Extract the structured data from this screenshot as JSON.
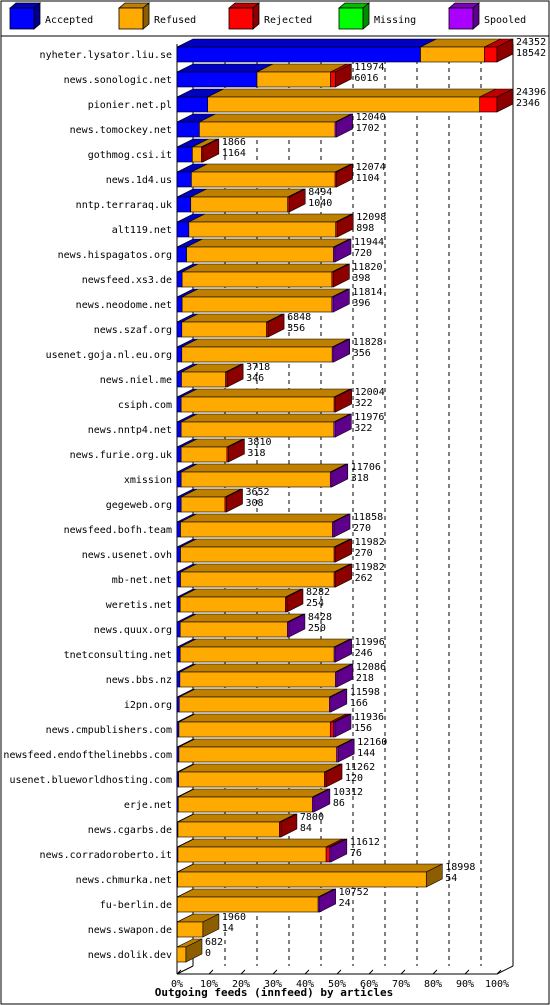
{
  "chart_data": {
    "type": "bar",
    "orientation": "horizontal",
    "stacked": true,
    "title": "",
    "xlabel": "Outgoing feeds (innfeed) by articles",
    "ylabel": "",
    "xlim": [
      0,
      100
    ],
    "x_ticks": [
      "0%",
      "10%",
      "20%",
      "30%",
      "40%",
      "50%",
      "60%",
      "70%",
      "80%",
      "90%",
      "100%"
    ],
    "grid": true,
    "legend_position": "top",
    "legend": [
      {
        "name": "Accepted",
        "color": "#0000ff"
      },
      {
        "name": "Refused",
        "color": "#ffaa00"
      },
      {
        "name": "Rejected",
        "color": "#ff0000"
      },
      {
        "name": "Missing",
        "color": "#00ff00"
      },
      {
        "name": "Spooled",
        "color": "#aa00ff"
      }
    ],
    "rows": [
      {
        "host": "nyheter.lysator.liu.se",
        "total": "24352",
        "accepted_count": "18542",
        "accepted": 76.1,
        "refused": 20.0,
        "rejected": 3.9,
        "spooled": 0
      },
      {
        "host": "news.sonologic.net",
        "total": "11974",
        "accepted_count": "6016",
        "accepted": 25.0,
        "refused": 23.0,
        "rejected": 1.5,
        "spooled": 0
      },
      {
        "host": "pionier.net.pl",
        "total": "24396",
        "accepted_count": "2346",
        "accepted": 9.6,
        "refused": 85.0,
        "rejected": 5.4,
        "spooled": 0
      },
      {
        "host": "news.tomockey.net",
        "total": "12040",
        "accepted_count": "1702",
        "accepted": 7.0,
        "refused": 42.4,
        "rejected": 0,
        "spooled": 0.1
      },
      {
        "host": "gothmog.csi.it",
        "total": "1866",
        "accepted_count": "1164",
        "accepted": 4.8,
        "refused": 2.8,
        "rejected": 0.1,
        "spooled": 0
      },
      {
        "host": "news.1d4.us",
        "total": "12074",
        "accepted_count": "1104",
        "accepted": 4.5,
        "refused": 44.9,
        "rejected": 0.1,
        "spooled": 0
      },
      {
        "host": "nntp.terraraq.uk",
        "total": "8494",
        "accepted_count": "1040",
        "accepted": 4.3,
        "refused": 30.3,
        "rejected": 0.1,
        "spooled": 0
      },
      {
        "host": "alt119.net",
        "total": "12098",
        "accepted_count": "898",
        "accepted": 3.7,
        "refused": 45.9,
        "rejected": 0.1,
        "spooled": 0
      },
      {
        "host": "news.hispagatos.org",
        "total": "11944",
        "accepted_count": "720",
        "accepted": 3.0,
        "refused": 45.9,
        "rejected": 0,
        "spooled": 0.1
      },
      {
        "host": "newsfeed.xs3.de",
        "total": "11820",
        "accepted_count": "398",
        "accepted": 1.6,
        "refused": 46.8,
        "rejected": 0.1,
        "spooled": 0
      },
      {
        "host": "news.neodome.net",
        "total": "11814",
        "accepted_count": "396",
        "accepted": 1.6,
        "refused": 46.8,
        "rejected": 0,
        "spooled": 0.1
      },
      {
        "host": "news.szaf.org",
        "total": "6848",
        "accepted_count": "356",
        "accepted": 1.5,
        "refused": 26.5,
        "rejected": 0.1,
        "spooled": 0
      },
      {
        "host": "usenet.goja.nl.eu.org",
        "total": "11828",
        "accepted_count": "356",
        "accepted": 1.5,
        "refused": 47.0,
        "rejected": 0,
        "spooled": 0.1
      },
      {
        "host": "news.niel.me",
        "total": "3718",
        "accepted_count": "346",
        "accepted": 1.4,
        "refused": 13.8,
        "rejected": 0.1,
        "spooled": 0
      },
      {
        "host": "csiph.com",
        "total": "12004",
        "accepted_count": "322",
        "accepted": 1.3,
        "refused": 47.8,
        "rejected": 0.1,
        "spooled": 0
      },
      {
        "host": "news.nntp4.net",
        "total": "11976",
        "accepted_count": "322",
        "accepted": 1.3,
        "refused": 47.7,
        "rejected": 0,
        "spooled": 0.1
      },
      {
        "host": "news.furie.org.uk",
        "total": "3810",
        "accepted_count": "318",
        "accepted": 1.3,
        "refused": 14.3,
        "rejected": 0.1,
        "spooled": 0
      },
      {
        "host": "xmission",
        "total": "11706",
        "accepted_count": "318",
        "accepted": 1.3,
        "refused": 46.6,
        "rejected": 0,
        "spooled": 0.1
      },
      {
        "host": "gegeweb.org",
        "total": "3652",
        "accepted_count": "308",
        "accepted": 1.3,
        "refused": 13.7,
        "rejected": 0.1,
        "spooled": 0
      },
      {
        "host": "newsfeed.bofh.team",
        "total": "11858",
        "accepted_count": "270",
        "accepted": 1.1,
        "refused": 47.5,
        "rejected": 0,
        "spooled": 0.1
      },
      {
        "host": "news.usenet.ovh",
        "total": "11982",
        "accepted_count": "270",
        "accepted": 1.1,
        "refused": 48.0,
        "rejected": 0.1,
        "spooled": 0
      },
      {
        "host": "mb-net.net",
        "total": "11982",
        "accepted_count": "262",
        "accepted": 1.1,
        "refused": 48.0,
        "rejected": 0.1,
        "spooled": 0
      },
      {
        "host": "weretis.net",
        "total": "8282",
        "accepted_count": "254",
        "accepted": 1.0,
        "refused": 32.9,
        "rejected": 0.1,
        "spooled": 0
      },
      {
        "host": "news.quux.org",
        "total": "8428",
        "accepted_count": "250",
        "accepted": 1.0,
        "refused": 33.5,
        "rejected": 0,
        "spooled": 0.1
      },
      {
        "host": "tnetconsulting.net",
        "total": "11996",
        "accepted_count": "246",
        "accepted": 1.0,
        "refused": 48.1,
        "rejected": 0,
        "spooled": 0.1
      },
      {
        "host": "news.bbs.nz",
        "total": "12086",
        "accepted_count": "218",
        "accepted": 0.9,
        "refused": 48.6,
        "rejected": 0,
        "spooled": 0.1
      },
      {
        "host": "i2pn.org",
        "total": "11598",
        "accepted_count": "166",
        "accepted": 0.7,
        "refused": 46.9,
        "rejected": 0,
        "spooled": 0.1
      },
      {
        "host": "news.cmpublishers.com",
        "total": "11936",
        "accepted_count": "156",
        "accepted": 0.6,
        "refused": 47.3,
        "rejected": 1.0,
        "spooled": 0.1
      },
      {
        "host": "newsfeed.endofthelinebbs.com",
        "total": "12160",
        "accepted_count": "144",
        "accepted": 0.6,
        "refused": 49.3,
        "rejected": 0,
        "spooled": 0.1
      },
      {
        "host": "usenet.blueworldhosting.com",
        "total": "11262",
        "accepted_count": "120",
        "accepted": 0.5,
        "refused": 45.6,
        "rejected": 0.1,
        "spooled": 0
      },
      {
        "host": "erje.net",
        "total": "10312",
        "accepted_count": "86",
        "accepted": 0.4,
        "refused": 41.9,
        "rejected": 0,
        "spooled": 0.1
      },
      {
        "host": "news.cgarbs.de",
        "total": "7800",
        "accepted_count": "84",
        "accepted": 0.3,
        "refused": 31.7,
        "rejected": 0.1,
        "spooled": 0
      },
      {
        "host": "news.corradoroberto.it",
        "total": "11612",
        "accepted_count": "76",
        "accepted": 0.3,
        "refused": 46.3,
        "rejected": 1.0,
        "spooled": 0.1
      },
      {
        "host": "news.chmurka.net",
        "total": "18998",
        "accepted_count": "54",
        "accepted": 0.2,
        "refused": 77.7,
        "rejected": 0,
        "spooled": 0
      },
      {
        "host": "fu-berlin.de",
        "total": "10752",
        "accepted_count": "24",
        "accepted": 0.1,
        "refused": 44.0,
        "rejected": 0,
        "spooled": 0.1
      },
      {
        "host": "news.swapon.de",
        "total": "1960",
        "accepted_count": "14",
        "accepted": 0.1,
        "refused": 8.0,
        "rejected": 0,
        "spooled": 0
      },
      {
        "host": "news.dolik.dev",
        "total": "682",
        "accepted_count": "0",
        "accepted": 0,
        "refused": 2.8,
        "rejected": 0,
        "spooled": 0
      }
    ]
  }
}
